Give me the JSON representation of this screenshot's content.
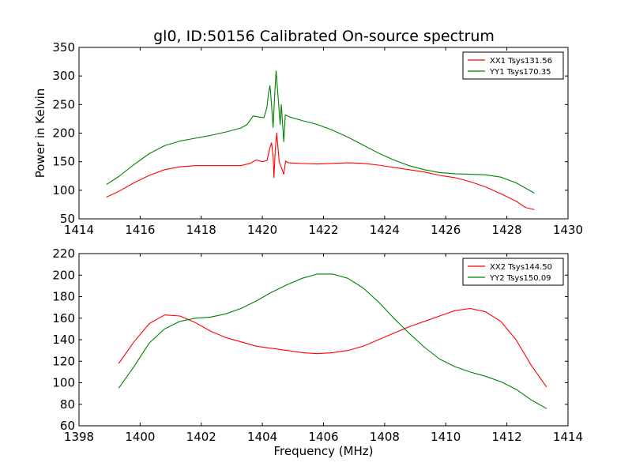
{
  "title": "gl0, ID:50156 Calibrated On-source spectrum",
  "chart_data": [
    {
      "type": "line",
      "title": "gl0, ID:50156 Calibrated On-source spectrum",
      "xlabel": "",
      "ylabel": "Power in Kelvin",
      "xlim": [
        1414,
        1430
      ],
      "ylim": [
        50,
        350
      ],
      "xticks": [
        1414,
        1416,
        1418,
        1420,
        1422,
        1424,
        1426,
        1428,
        1430
      ],
      "yticks": [
        50,
        100,
        150,
        200,
        250,
        300,
        350
      ],
      "legend_position": "top-right",
      "grid": false,
      "series": [
        {
          "name": "XX1 Tsys131.56",
          "color": "#ff0000",
          "points": [
            [
              1414.9,
              88
            ],
            [
              1415.3,
              98
            ],
            [
              1415.8,
              113
            ],
            [
              1416.3,
              126
            ],
            [
              1416.8,
              136
            ],
            [
              1417.3,
              141
            ],
            [
              1417.8,
              143
            ],
            [
              1418.3,
              143
            ],
            [
              1418.8,
              143
            ],
            [
              1419.3,
              143
            ],
            [
              1419.6,
              147
            ],
            [
              1419.8,
              153
            ],
            [
              1420.0,
              150
            ],
            [
              1420.15,
              152
            ],
            [
              1420.25,
              175
            ],
            [
              1420.3,
              183
            ],
            [
              1420.35,
              160
            ],
            [
              1420.38,
              122
            ],
            [
              1420.42,
              170
            ],
            [
              1420.47,
              200
            ],
            [
              1420.55,
              150
            ],
            [
              1420.62,
              140
            ],
            [
              1420.7,
              128
            ],
            [
              1420.76,
              151
            ],
            [
              1420.85,
              148
            ],
            [
              1421.2,
              147
            ],
            [
              1421.8,
              146
            ],
            [
              1422.3,
              147
            ],
            [
              1422.8,
              148
            ],
            [
              1423.3,
              147
            ],
            [
              1423.8,
              144
            ],
            [
              1424.3,
              140
            ],
            [
              1424.8,
              136
            ],
            [
              1425.3,
              132
            ],
            [
              1425.8,
              126
            ],
            [
              1426.3,
              122
            ],
            [
              1426.8,
              115
            ],
            [
              1427.3,
              106
            ],
            [
              1427.8,
              94
            ],
            [
              1428.3,
              81
            ],
            [
              1428.6,
              70
            ],
            [
              1428.9,
              66
            ]
          ]
        },
        {
          "name": "YY1 Tsys170.35",
          "color": "#008000",
          "points": [
            [
              1414.9,
              110
            ],
            [
              1415.3,
              124
            ],
            [
              1415.8,
              145
            ],
            [
              1416.3,
              164
            ],
            [
              1416.8,
              178
            ],
            [
              1417.3,
              186
            ],
            [
              1417.8,
              191
            ],
            [
              1418.3,
              196
            ],
            [
              1418.8,
              202
            ],
            [
              1419.3,
              209
            ],
            [
              1419.5,
              215
            ],
            [
              1419.7,
              230
            ],
            [
              1419.9,
              228
            ],
            [
              1420.05,
              227
            ],
            [
              1420.15,
              245
            ],
            [
              1420.2,
              270
            ],
            [
              1420.25,
              283
            ],
            [
              1420.3,
              250
            ],
            [
              1420.35,
              210
            ],
            [
              1420.4,
              265
            ],
            [
              1420.45,
              309
            ],
            [
              1420.52,
              260
            ],
            [
              1420.58,
              215
            ],
            [
              1420.62,
              250
            ],
            [
              1420.7,
              185
            ],
            [
              1420.75,
              232
            ],
            [
              1420.9,
              228
            ],
            [
              1421.3,
              222
            ],
            [
              1421.8,
              215
            ],
            [
              1422.3,
              205
            ],
            [
              1422.8,
              193
            ],
            [
              1423.3,
              179
            ],
            [
              1423.8,
              165
            ],
            [
              1424.3,
              153
            ],
            [
              1424.8,
              143
            ],
            [
              1425.3,
              136
            ],
            [
              1425.8,
              131
            ],
            [
              1426.3,
              129
            ],
            [
              1426.8,
              128
            ],
            [
              1427.3,
              127
            ],
            [
              1427.8,
              123
            ],
            [
              1428.3,
              113
            ],
            [
              1428.6,
              104
            ],
            [
              1428.9,
              95
            ]
          ]
        }
      ]
    },
    {
      "type": "line",
      "title": "",
      "xlabel": "Frequency (MHz)",
      "ylabel": "",
      "xlim": [
        1398,
        1414
      ],
      "ylim": [
        60,
        220
      ],
      "xticks": [
        1398,
        1400,
        1402,
        1404,
        1406,
        1408,
        1410,
        1412,
        1414
      ],
      "yticks": [
        60,
        80,
        100,
        120,
        140,
        160,
        180,
        200,
        220
      ],
      "legend_position": "top-right",
      "grid": false,
      "series": [
        {
          "name": "XX2 Tsys144.50",
          "color": "#ff0000",
          "points": [
            [
              1399.3,
              118
            ],
            [
              1399.8,
              138
            ],
            [
              1400.3,
              155
            ],
            [
              1400.8,
              163
            ],
            [
              1401.3,
              162
            ],
            [
              1401.8,
              156
            ],
            [
              1402.3,
              148
            ],
            [
              1402.8,
              142
            ],
            [
              1403.3,
              138
            ],
            [
              1403.8,
              134
            ],
            [
              1404.3,
              132
            ],
            [
              1404.8,
              130
            ],
            [
              1405.3,
              128
            ],
            [
              1405.8,
              127
            ],
            [
              1406.3,
              128
            ],
            [
              1406.8,
              130
            ],
            [
              1407.3,
              134
            ],
            [
              1407.8,
              140
            ],
            [
              1408.3,
              146
            ],
            [
              1408.8,
              152
            ],
            [
              1409.3,
              157
            ],
            [
              1409.8,
              162
            ],
            [
              1410.3,
              167
            ],
            [
              1410.8,
              169
            ],
            [
              1411.3,
              166
            ],
            [
              1411.8,
              157
            ],
            [
              1412.3,
              140
            ],
            [
              1412.8,
              116
            ],
            [
              1413.3,
              96
            ]
          ]
        },
        {
          "name": "YY2 Tsys150.09",
          "color": "#008000",
          "points": [
            [
              1399.3,
              95
            ],
            [
              1399.8,
              115
            ],
            [
              1400.3,
              137
            ],
            [
              1400.8,
              150
            ],
            [
              1401.3,
              157
            ],
            [
              1401.8,
              160
            ],
            [
              1402.3,
              161
            ],
            [
              1402.8,
              164
            ],
            [
              1403.3,
              169
            ],
            [
              1403.8,
              176
            ],
            [
              1404.3,
              184
            ],
            [
              1404.8,
              191
            ],
            [
              1405.3,
              197
            ],
            [
              1405.8,
              201
            ],
            [
              1406.3,
              201
            ],
            [
              1406.8,
              197
            ],
            [
              1407.3,
              188
            ],
            [
              1407.8,
              175
            ],
            [
              1408.3,
              160
            ],
            [
              1408.8,
              146
            ],
            [
              1409.3,
              133
            ],
            [
              1409.8,
              122
            ],
            [
              1410.3,
              115
            ],
            [
              1410.8,
              110
            ],
            [
              1411.3,
              106
            ],
            [
              1411.8,
              101
            ],
            [
              1412.3,
              94
            ],
            [
              1412.8,
              84
            ],
            [
              1413.3,
              76
            ]
          ]
        }
      ]
    }
  ]
}
